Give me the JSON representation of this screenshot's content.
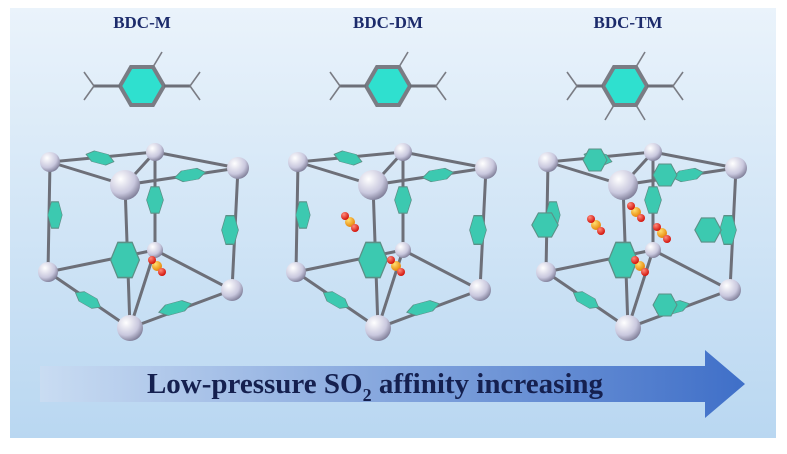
{
  "labels": [
    "BDC-M",
    "BDC-DM",
    "BDC-TM"
  ],
  "arrow": {
    "text": "Low-pressure SO",
    "subscript": "2",
    "text_after": " affinity increasing"
  }
}
